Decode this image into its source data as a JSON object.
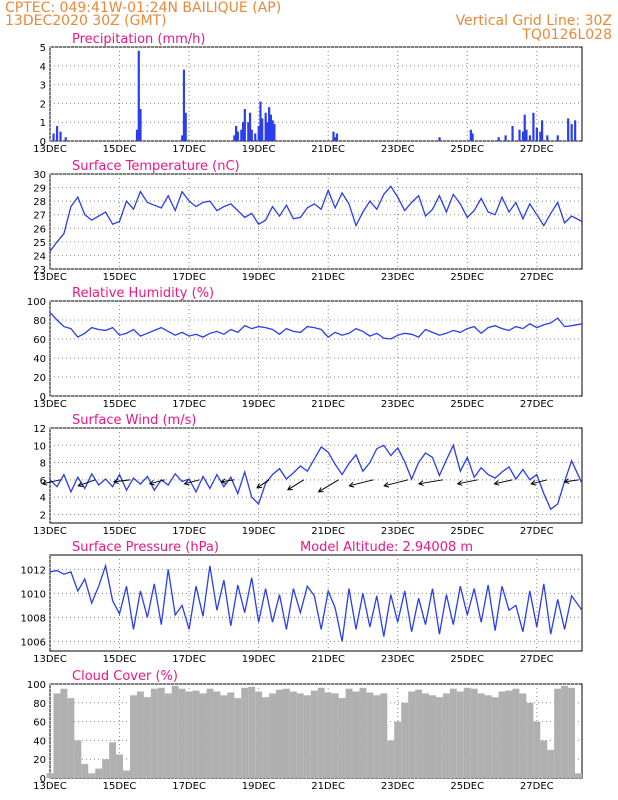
{
  "header": {
    "line1": "CPTEC:  049:41W-01:24N  BAILIQUE (AP)",
    "line2": "13DEC2020 30Z (GMT)",
    "grid_note": "Vertical Grid Line: 30Z",
    "code": "TQ0126L028"
  },
  "colors": {
    "series": "#2a3ef0",
    "cloud": "#b0b0b0",
    "title": "#e8178a",
    "header": "#e8893a"
  },
  "chart_data": [
    {
      "type": "bar",
      "title": "Precipitation (mm/h)",
      "xlabel": "",
      "ylabel": "",
      "xlim": [
        13,
        28.3
      ],
      "ylim": [
        0,
        5
      ],
      "yticks": [
        0,
        1,
        2,
        3,
        4,
        5
      ],
      "xticks": [
        "13DEC",
        "15DEC",
        "17DEC",
        "19DEC",
        "21DEC",
        "23DEC",
        "25DEC",
        "27DEC"
      ],
      "bars": [
        {
          "x": 13.1,
          "y": 0.4
        },
        {
          "x": 13.2,
          "y": 0.8
        },
        {
          "x": 13.3,
          "y": 0.5
        },
        {
          "x": 13.45,
          "y": 0.2
        },
        {
          "x": 15.5,
          "y": 0.6
        },
        {
          "x": 15.55,
          "y": 4.8
        },
        {
          "x": 15.6,
          "y": 1.7
        },
        {
          "x": 16.8,
          "y": 0.3
        },
        {
          "x": 16.85,
          "y": 3.8
        },
        {
          "x": 16.9,
          "y": 1.5
        },
        {
          "x": 18.3,
          "y": 0.3
        },
        {
          "x": 18.35,
          "y": 0.8
        },
        {
          "x": 18.4,
          "y": 0.5
        },
        {
          "x": 18.5,
          "y": 0.6
        },
        {
          "x": 18.55,
          "y": 1.0
        },
        {
          "x": 18.6,
          "y": 1.7
        },
        {
          "x": 18.7,
          "y": 1.0
        },
        {
          "x": 18.75,
          "y": 1.5
        },
        {
          "x": 18.8,
          "y": 0.6
        },
        {
          "x": 18.9,
          "y": 0.4
        },
        {
          "x": 19.0,
          "y": 0.8
        },
        {
          "x": 19.05,
          "y": 2.1
        },
        {
          "x": 19.1,
          "y": 1.2
        },
        {
          "x": 19.2,
          "y": 1.5
        },
        {
          "x": 19.25,
          "y": 1.0
        },
        {
          "x": 19.3,
          "y": 1.8
        },
        {
          "x": 19.35,
          "y": 1.4
        },
        {
          "x": 19.4,
          "y": 1.1
        },
        {
          "x": 19.45,
          "y": 0.9
        },
        {
          "x": 21.15,
          "y": 0.5
        },
        {
          "x": 21.2,
          "y": 0.2
        },
        {
          "x": 21.25,
          "y": 0.4
        },
        {
          "x": 24.2,
          "y": 0.2
        },
        {
          "x": 25.1,
          "y": 0.6
        },
        {
          "x": 25.15,
          "y": 0.4
        },
        {
          "x": 25.9,
          "y": 0.2
        },
        {
          "x": 26.1,
          "y": 0.3
        },
        {
          "x": 26.3,
          "y": 0.8
        },
        {
          "x": 26.5,
          "y": 0.6
        },
        {
          "x": 26.6,
          "y": 0.5
        },
        {
          "x": 26.65,
          "y": 1.4
        },
        {
          "x": 26.7,
          "y": 0.6
        },
        {
          "x": 26.8,
          "y": 0.3
        },
        {
          "x": 26.9,
          "y": 1.5
        },
        {
          "x": 27.0,
          "y": 0.7
        },
        {
          "x": 27.1,
          "y": 0.5
        },
        {
          "x": 27.15,
          "y": 1.1
        },
        {
          "x": 27.3,
          "y": 0.3
        },
        {
          "x": 27.6,
          "y": 0.3
        },
        {
          "x": 27.9,
          "y": 1.2
        },
        {
          "x": 28.0,
          "y": 0.9
        },
        {
          "x": 28.1,
          "y": 1.1
        }
      ]
    },
    {
      "type": "line",
      "title": "Surface Temperature (nC)",
      "xlim": [
        13,
        28.3
      ],
      "ylim": [
        23,
        30
      ],
      "yticks": [
        23,
        24,
        25,
        26,
        27,
        28,
        29,
        30
      ],
      "xticks": [
        "13DEC",
        "15DEC",
        "17DEC",
        "19DEC",
        "21DEC",
        "23DEC",
        "25DEC",
        "27DEC"
      ],
      "x": [
        13.0,
        13.2,
        13.4,
        13.6,
        13.8,
        14.0,
        14.2,
        14.4,
        14.6,
        14.8,
        15.0,
        15.2,
        15.4,
        15.6,
        15.8,
        16.0,
        16.2,
        16.4,
        16.6,
        16.8,
        17.0,
        17.2,
        17.4,
        17.6,
        17.8,
        18.0,
        18.2,
        18.4,
        18.6,
        18.8,
        19.0,
        19.2,
        19.4,
        19.6,
        19.8,
        20.0,
        20.2,
        20.4,
        20.6,
        20.8,
        21.0,
        21.2,
        21.4,
        21.6,
        21.8,
        22.0,
        22.2,
        22.4,
        22.6,
        22.8,
        23.0,
        23.2,
        23.4,
        23.6,
        23.8,
        24.0,
        24.2,
        24.4,
        24.6,
        24.8,
        25.0,
        25.2,
        25.4,
        25.6,
        25.8,
        26.0,
        26.2,
        26.4,
        26.6,
        26.8,
        27.0,
        27.2,
        27.4,
        27.6,
        27.8,
        28.0,
        28.3
      ],
      "y": [
        24.3,
        25.0,
        25.6,
        27.6,
        28.3,
        27.0,
        26.6,
        26.9,
        27.2,
        26.3,
        26.5,
        28.0,
        27.4,
        28.7,
        27.9,
        27.7,
        27.5,
        28.4,
        27.3,
        28.7,
        28.0,
        27.6,
        27.9,
        28.0,
        27.3,
        27.6,
        27.8,
        27.3,
        26.8,
        27.1,
        26.3,
        26.6,
        27.6,
        26.9,
        27.7,
        26.7,
        26.8,
        27.5,
        27.8,
        27.4,
        28.8,
        27.5,
        28.6,
        27.8,
        26.2,
        27.2,
        28.0,
        27.4,
        28.5,
        29.1,
        28.3,
        27.3,
        27.9,
        28.4,
        26.9,
        27.4,
        28.4,
        27.2,
        28.5,
        27.8,
        26.8,
        27.3,
        28.2,
        27.2,
        27.0,
        28.3,
        27.2,
        27.9,
        26.7,
        27.8,
        27.0,
        26.2,
        27.1,
        27.9,
        26.4,
        26.9,
        26.5
      ]
    },
    {
      "type": "line",
      "title": "Relative Humidity (%)",
      "xlim": [
        13,
        28.3
      ],
      "ylim": [
        0,
        100
      ],
      "yticks": [
        0,
        20,
        40,
        60,
        80,
        100
      ],
      "xticks": [
        "13DEC",
        "15DEC",
        "17DEC",
        "19DEC",
        "21DEC",
        "23DEC",
        "25DEC",
        "27DEC"
      ],
      "x": [
        13.0,
        13.2,
        13.4,
        13.6,
        13.8,
        14.0,
        14.2,
        14.4,
        14.6,
        14.8,
        15.0,
        15.2,
        15.4,
        15.6,
        15.8,
        16.0,
        16.2,
        16.4,
        16.6,
        16.8,
        17.0,
        17.2,
        17.4,
        17.6,
        17.8,
        18.0,
        18.2,
        18.4,
        18.6,
        18.8,
        19.0,
        19.2,
        19.4,
        19.6,
        19.8,
        20.0,
        20.2,
        20.4,
        20.6,
        20.8,
        21.0,
        21.2,
        21.4,
        21.6,
        21.8,
        22.0,
        22.2,
        22.4,
        22.6,
        22.8,
        23.0,
        23.2,
        23.4,
        23.6,
        23.8,
        24.0,
        24.2,
        24.4,
        24.6,
        24.8,
        25.0,
        25.2,
        25.4,
        25.6,
        25.8,
        26.0,
        26.2,
        26.4,
        26.6,
        26.8,
        27.0,
        27.2,
        27.4,
        27.6,
        27.8,
        28.0,
        28.3
      ],
      "y": [
        88,
        80,
        73,
        71,
        62,
        66,
        72,
        70,
        69,
        72,
        64,
        66,
        70,
        63,
        66,
        69,
        72,
        68,
        64,
        67,
        63,
        65,
        62,
        66,
        68,
        65,
        70,
        67,
        74,
        71,
        73,
        72,
        70,
        65,
        71,
        68,
        67,
        73,
        72,
        70,
        62,
        67,
        64,
        66,
        71,
        68,
        63,
        66,
        61,
        60,
        64,
        66,
        65,
        62,
        70,
        67,
        64,
        66,
        69,
        67,
        71,
        73,
        66,
        72,
        74,
        71,
        69,
        73,
        71,
        76,
        72,
        75,
        77,
        82,
        73,
        74,
        76
      ]
    },
    {
      "type": "line",
      "title": "Surface Wind (m/s)",
      "xlim": [
        13,
        28.3
      ],
      "ylim": [
        1,
        12
      ],
      "yticks": [
        2,
        4,
        6,
        8,
        10,
        12
      ],
      "xticks": [
        "13DEC",
        "15DEC",
        "17DEC",
        "19DEC",
        "21DEC",
        "23DEC",
        "25DEC",
        "27DEC"
      ],
      "x": [
        13.0,
        13.2,
        13.4,
        13.6,
        13.8,
        14.0,
        14.2,
        14.4,
        14.6,
        14.8,
        15.0,
        15.2,
        15.4,
        15.6,
        15.8,
        16.0,
        16.2,
        16.4,
        16.6,
        16.8,
        17.0,
        17.2,
        17.4,
        17.6,
        17.8,
        18.0,
        18.2,
        18.4,
        18.6,
        18.8,
        19.0,
        19.2,
        19.4,
        19.6,
        19.8,
        20.0,
        20.2,
        20.4,
        20.6,
        20.8,
        21.0,
        21.2,
        21.4,
        21.6,
        21.8,
        22.0,
        22.2,
        22.4,
        22.6,
        22.8,
        23.0,
        23.2,
        23.4,
        23.6,
        23.8,
        24.0,
        24.2,
        24.4,
        24.6,
        24.8,
        25.0,
        25.2,
        25.4,
        25.6,
        25.8,
        26.0,
        26.2,
        26.4,
        26.6,
        26.8,
        27.0,
        27.2,
        27.4,
        27.6,
        27.8,
        28.0,
        28.3
      ],
      "y": [
        6.0,
        5.2,
        6.6,
        4.6,
        6.3,
        5.0,
        6.7,
        5.4,
        6.1,
        5.2,
        6.6,
        4.8,
        6.2,
        5.5,
        6.4,
        4.8,
        6.0,
        5.4,
        6.7,
        5.8,
        6.1,
        4.6,
        6.4,
        5.0,
        6.6,
        5.2,
        6.3,
        4.4,
        6.9,
        4.0,
        3.2,
        5.6,
        6.6,
        7.3,
        6.1,
        6.8,
        7.6,
        7.0,
        8.4,
        9.8,
        9.2,
        7.8,
        6.6,
        7.9,
        8.9,
        7.0,
        8.0,
        9.6,
        10.0,
        8.8,
        9.7,
        8.1,
        6.1,
        8.0,
        9.1,
        8.6,
        6.5,
        8.3,
        10.0,
        7.0,
        8.6,
        6.3,
        7.4,
        6.6,
        6.2,
        6.9,
        7.5,
        6.1,
        7.2,
        6.0,
        6.6,
        4.4,
        2.6,
        3.2,
        5.8,
        8.2,
        5.6
      ],
      "arrows_x": [
        13.3,
        14.3,
        15.3,
        16.3,
        17.3,
        18.3,
        19.3,
        20.3,
        21.3,
        22.3,
        23.3,
        24.3,
        25.3,
        26.3,
        27.3,
        28.2
      ],
      "arrows_dx": [
        -18,
        -17,
        -16,
        -15,
        -15,
        -13,
        -12,
        -16,
        -20,
        -24,
        -24,
        -24,
        -20,
        -18,
        -16,
        -14
      ],
      "arrows_dy": [
        4,
        6,
        2,
        4,
        4,
        2,
        8,
        10,
        12,
        6,
        6,
        4,
        4,
        4,
        4,
        2
      ]
    },
    {
      "type": "line",
      "title": "Surface Pressure (hPa)",
      "annotation": "Model Altitude: 2.94008  m",
      "xlim": [
        13,
        28.3
      ],
      "ylim": [
        1005.2,
        1013.2
      ],
      "yticks": [
        1006,
        1008,
        1010,
        1012
      ],
      "xticks": [
        "13DEC",
        "15DEC",
        "17DEC",
        "19DEC",
        "21DEC",
        "23DEC",
        "25DEC",
        "27DEC"
      ],
      "x": [
        13.0,
        13.2,
        13.4,
        13.6,
        13.8,
        14.0,
        14.2,
        14.4,
        14.6,
        14.8,
        15.0,
        15.2,
        15.4,
        15.6,
        15.8,
        16.0,
        16.2,
        16.4,
        16.6,
        16.8,
        17.0,
        17.2,
        17.4,
        17.6,
        17.8,
        18.0,
        18.2,
        18.4,
        18.6,
        18.8,
        19.0,
        19.2,
        19.4,
        19.6,
        19.8,
        20.0,
        20.2,
        20.4,
        20.6,
        20.8,
        21.0,
        21.2,
        21.4,
        21.6,
        21.8,
        22.0,
        22.2,
        22.4,
        22.6,
        22.8,
        23.0,
        23.2,
        23.4,
        23.6,
        23.8,
        24.0,
        24.2,
        24.4,
        24.6,
        24.8,
        25.0,
        25.2,
        25.4,
        25.6,
        25.8,
        26.0,
        26.2,
        26.4,
        26.6,
        26.8,
        27.0,
        27.2,
        27.4,
        27.6,
        27.8,
        28.0,
        28.3
      ],
      "y": [
        1011.8,
        1011.9,
        1011.6,
        1011.8,
        1010.2,
        1011.2,
        1009.2,
        1010.6,
        1012.3,
        1009.4,
        1008.3,
        1010.6,
        1007.0,
        1010.2,
        1008.0,
        1010.8,
        1007.4,
        1012.0,
        1008.2,
        1009.0,
        1007.0,
        1010.6,
        1008.1,
        1012.3,
        1008.6,
        1011.1,
        1007.3,
        1010.7,
        1008.4,
        1011.3,
        1007.6,
        1010.4,
        1007.6,
        1009.9,
        1007.0,
        1010.4,
        1008.4,
        1010.6,
        1009.8,
        1007.0,
        1010.2,
        1008.8,
        1006.0,
        1010.4,
        1007.0,
        1010.0,
        1007.2,
        1009.8,
        1006.4,
        1009.9,
        1007.6,
        1010.2,
        1006.8,
        1009.6,
        1007.4,
        1010.4,
        1006.6,
        1009.9,
        1007.4,
        1010.6,
        1008.2,
        1010.4,
        1007.6,
        1010.7,
        1006.9,
        1010.6,
        1008.6,
        1009.0,
        1006.8,
        1010.2,
        1007.2,
        1010.8,
        1006.6,
        1009.5,
        1007.0,
        1009.8,
        1008.6
      ]
    },
    {
      "type": "bar",
      "title": "Cloud Cover (%)",
      "xlim": [
        13,
        28.3
      ],
      "ylim": [
        0,
        100
      ],
      "yticks": [
        0,
        20,
        40,
        60,
        80,
        100
      ],
      "xticks": [
        "13DEC",
        "15DEC",
        "17DEC",
        "19DEC",
        "21DEC",
        "23DEC",
        "25DEC",
        "27DEC"
      ],
      "x": [
        13.0,
        13.2,
        13.4,
        13.6,
        13.8,
        14.0,
        14.2,
        14.4,
        14.6,
        14.8,
        15.0,
        15.2,
        15.4,
        15.6,
        15.8,
        16.0,
        16.2,
        16.4,
        16.6,
        16.8,
        17.0,
        17.2,
        17.4,
        17.6,
        17.8,
        18.0,
        18.2,
        18.4,
        18.6,
        18.8,
        19.0,
        19.2,
        19.4,
        19.6,
        19.8,
        20.0,
        20.2,
        20.4,
        20.6,
        20.8,
        21.0,
        21.2,
        21.4,
        21.6,
        21.8,
        22.0,
        22.2,
        22.4,
        22.6,
        22.8,
        23.0,
        23.2,
        23.4,
        23.6,
        23.8,
        24.0,
        24.2,
        24.4,
        24.6,
        24.8,
        25.0,
        25.2,
        25.4,
        25.6,
        25.8,
        26.0,
        26.2,
        26.4,
        26.6,
        26.8,
        27.0,
        27.2,
        27.4,
        27.6,
        27.8,
        28.0,
        28.2
      ],
      "y": [
        5,
        90,
        95,
        85,
        40,
        15,
        5,
        10,
        20,
        38,
        25,
        8,
        88,
        92,
        86,
        95,
        96,
        90,
        98,
        95,
        92,
        93,
        90,
        95,
        92,
        88,
        91,
        85,
        96,
        97,
        92,
        86,
        90,
        94,
        95,
        92,
        90,
        88,
        93,
        96,
        91,
        90,
        85,
        95,
        92,
        96,
        91,
        88,
        90,
        40,
        60,
        80,
        92,
        94,
        90,
        88,
        86,
        90,
        95,
        92,
        96,
        95,
        90,
        88,
        86,
        92,
        93,
        95,
        90,
        80,
        60,
        40,
        30,
        95,
        98,
        96,
        5
      ]
    }
  ]
}
